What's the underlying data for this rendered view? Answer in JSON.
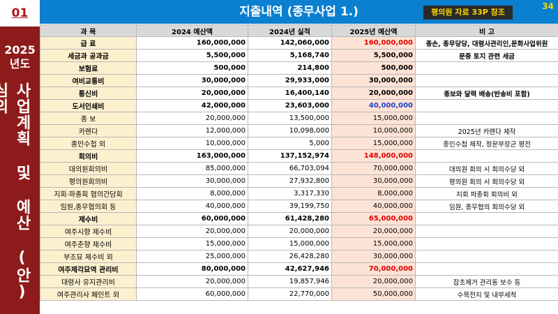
{
  "badge": {
    "section": "01",
    "year": "2025\n년도",
    "vertical": "사업계획 및 예산 (안) 심의"
  },
  "header": {
    "title": "지출내역 (종무사업 1.)",
    "reference": "평의원 자료 33P 참조",
    "page": "34"
  },
  "table": {
    "columns": [
      "과    목",
      "2024 예산액",
      "2024년 실적",
      "2025년 예산액",
      "비          고"
    ],
    "rows": [
      {
        "item": "급    료",
        "budget_2024": "160,000,000",
        "actual_2024": "142,060,000",
        "budget_2025": "160,000,000",
        "note": "종손, 종무당당, 대령사관리인,문화사업위원",
        "group": true,
        "color": "#e00000"
      },
      {
        "item": "세금과 공과금",
        "budget_2024": "5,500,000",
        "actual_2024": "5,168,740",
        "budget_2025": "5,500,000",
        "note": "문중 토지 관련 세금",
        "group": true
      },
      {
        "item": "보험료",
        "budget_2024": "500,000",
        "actual_2024": "214,800",
        "budget_2025": "500,000",
        "group": true
      },
      {
        "item": "여비교통비",
        "budget_2024": "30,000,000",
        "actual_2024": "29,933,000",
        "budget_2025": "30,000,000",
        "group": true
      },
      {
        "item": "통신비",
        "budget_2024": "20,000,000",
        "actual_2024": "16,400,140",
        "budget_2025": "20,000,000",
        "note": "종보와 달력 배송(반송비 포함)",
        "group": true
      },
      {
        "item": "도서인쇄비",
        "budget_2024": "42,000,000",
        "actual_2024": "23,603,000",
        "budget_2025": "40,000,000",
        "group": true,
        "color": "#1f3fd0"
      },
      {
        "item": "종  보",
        "budget_2024": "20,000,000",
        "actual_2024": "13,500,000",
        "budget_2025": "15,000,000"
      },
      {
        "item": "카렌다",
        "budget_2024": "12,000,000",
        "actual_2024": "10,098,000",
        "budget_2025": "10,000,000",
        "note": "2025년 카렌다 제작"
      },
      {
        "item": "종인수첩 외",
        "budget_2024": "10,000,000",
        "actual_2024": "5,000",
        "budget_2025": "15,000,000",
        "note": "종인수첩 제작, 정문부장군 평전"
      },
      {
        "item": "회의비",
        "budget_2024": "163,000,000",
        "actual_2024": "137,152,974",
        "budget_2025": "148,000,000",
        "group": true,
        "color": "#e00000"
      },
      {
        "item": "대의원회의비",
        "budget_2024": "85,000,000",
        "actual_2024": "66,703,094",
        "budget_2025": "70,000,000",
        "note": "대의원 회의 시 회의수당 외"
      },
      {
        "item": "평의원회의비",
        "budget_2024": "30,000,000",
        "actual_2024": "27,932,800",
        "budget_2025": "30,000,000",
        "note": "평의원 회의 시 회의수당 외"
      },
      {
        "item": "지회·파종회 협의간담회",
        "budget_2024": "8,000,000",
        "actual_2024": "3,317,330",
        "budget_2025": "8,000,000",
        "note": "지회 파종회 회의비 외"
      },
      {
        "item": "임원,종무협의회 등",
        "budget_2024": "40,000,000",
        "actual_2024": "39,199,750",
        "budget_2025": "40,000,000",
        "note": "임원, 종무협의 회의수당 외"
      },
      {
        "item": "제수비",
        "budget_2024": "60,000,000",
        "actual_2024": "61,428,280",
        "budget_2025": "65,000,000",
        "group": true,
        "color": "#e00000"
      },
      {
        "item": "여주시향 제수비",
        "budget_2024": "20,000,000",
        "actual_2024": "20,000,000",
        "budget_2025": "20,000,000"
      },
      {
        "item": "여주춘향 제수비",
        "budget_2024": "15,000,000",
        "actual_2024": "15,000,000",
        "budget_2025": "15,000,000"
      },
      {
        "item": "부조묘 제수비 외",
        "budget_2024": "25,000,000",
        "actual_2024": "26,428,280",
        "budget_2025": "30,000,000"
      },
      {
        "item": "여주제각묘역 관리비",
        "budget_2024": "80,000,000",
        "actual_2024": "42,627,946",
        "budget_2025": "70,000,000",
        "group": true,
        "color": "#e00000"
      },
      {
        "item": "대령사 유지관리비",
        "budget_2024": "20,000,000",
        "actual_2024": "19,857,946",
        "budget_2025": "20,000,000",
        "note": "잡초제거 관리동 보수 등"
      },
      {
        "item": "여주관리사 페인트 외",
        "budget_2024": "60,000,000",
        "actual_2024": "22,770,000",
        "budget_2025": "50,000,000",
        "note": "수목전지 및 내부세척"
      }
    ]
  }
}
